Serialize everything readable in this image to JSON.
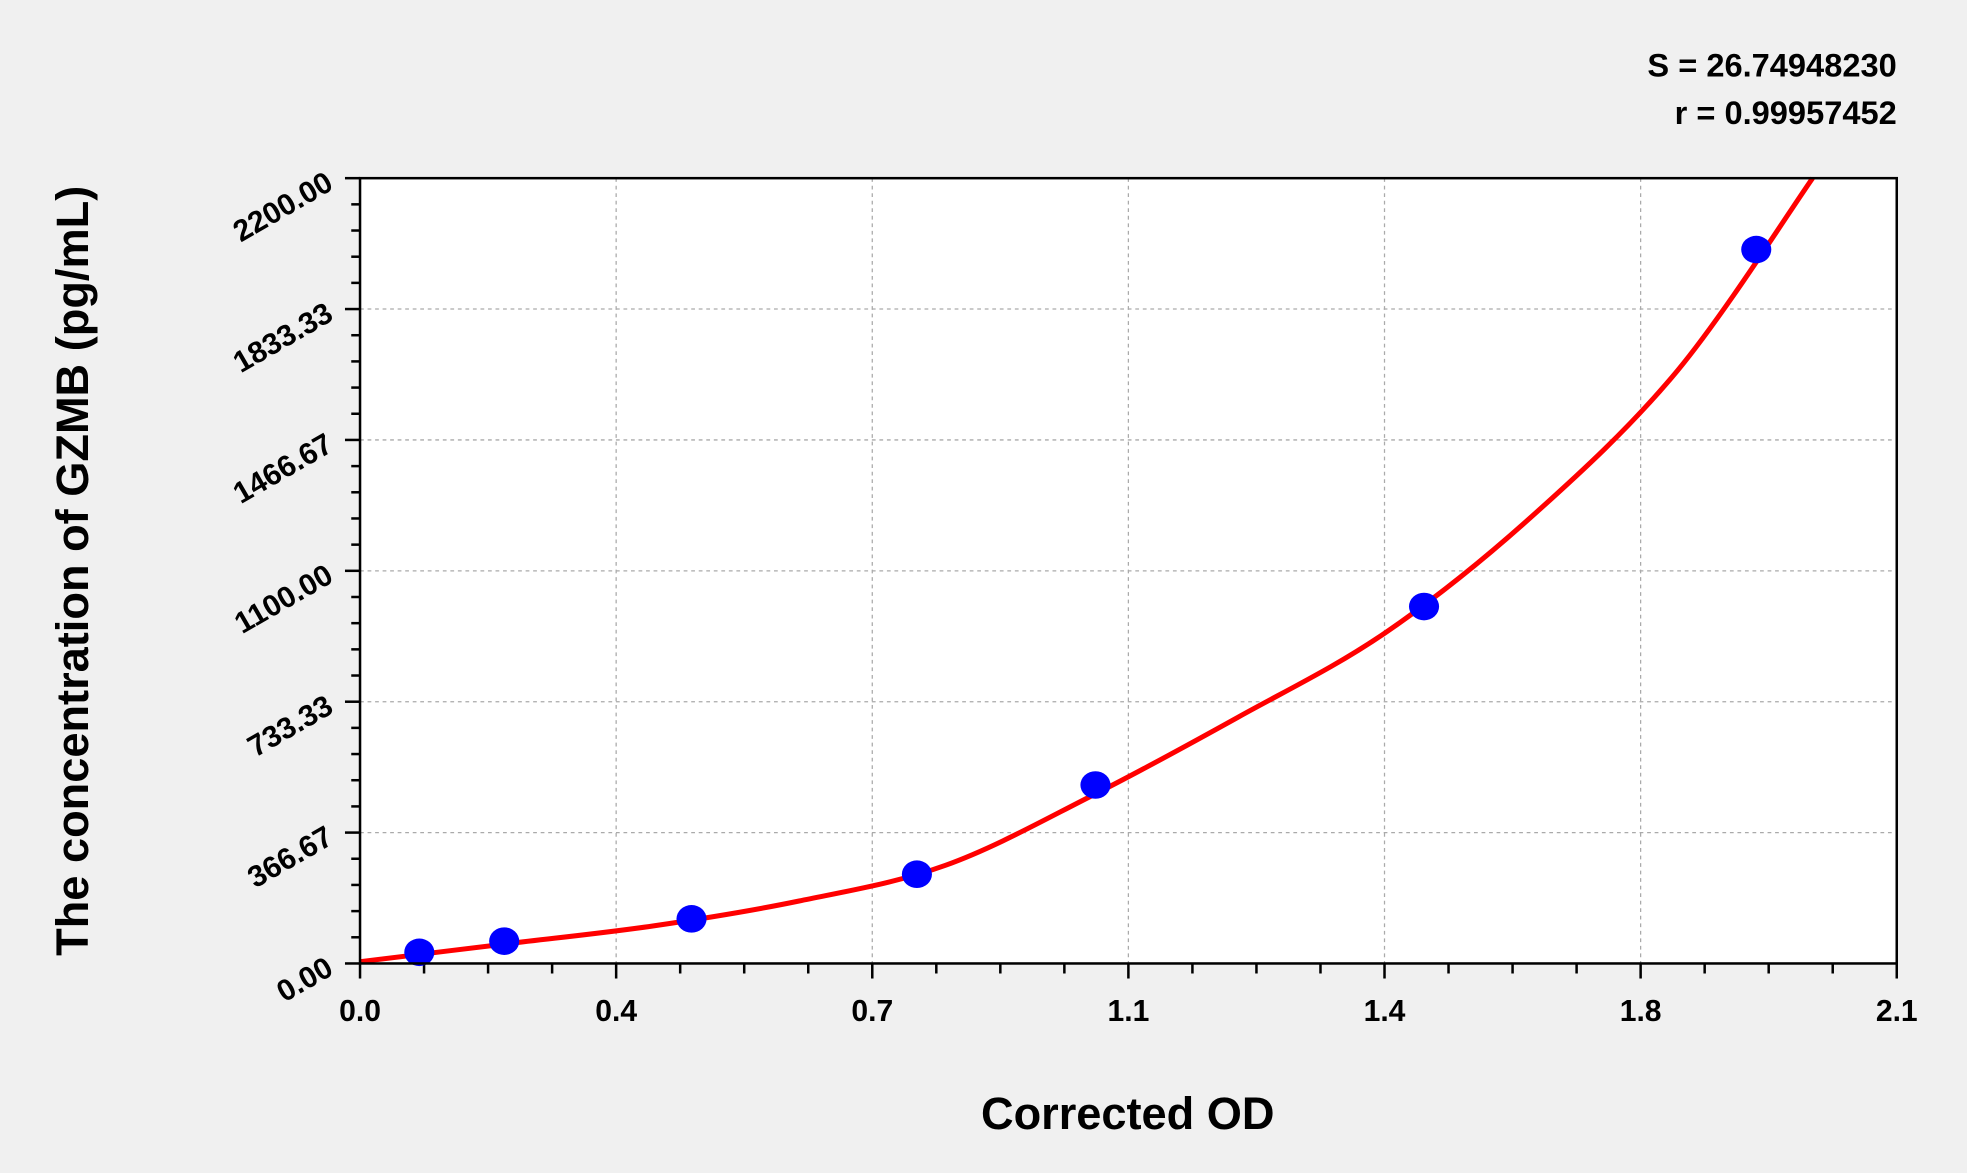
{
  "chart_data": {
    "type": "scatter",
    "xlabel": "Corrected OD",
    "ylabel": "The concentration of GZMB (pg/mL)",
    "xlim": [
      0,
      2.1
    ],
    "ylim": [
      0,
      2200
    ],
    "x_ticks": [
      "0.0",
      "0.4",
      "0.7",
      "1.1",
      "1.4",
      "1.8",
      "2.1"
    ],
    "y_ticks": [
      "0.00",
      "366.67",
      "733.33",
      "1100.00",
      "1466.67",
      "1833.33",
      "2200.00"
    ],
    "grid": true,
    "stats": {
      "s": "S = 26.74948230",
      "r": "r = 0.99957452"
    },
    "colors": {
      "points": "#0000ff",
      "fit": "#ff0000",
      "background": "#f0f0f0"
    },
    "points": [
      {
        "x": 0.081,
        "y": 31.25
      },
      {
        "x": 0.197,
        "y": 62.5
      },
      {
        "x": 0.453,
        "y": 125
      },
      {
        "x": 0.761,
        "y": 250
      },
      {
        "x": 1.005,
        "y": 500
      },
      {
        "x": 1.454,
        "y": 1000
      },
      {
        "x": 1.908,
        "y": 2000
      }
    ],
    "fit_curve": [
      {
        "x": 0,
        "y": 5
      },
      {
        "x": 0.2,
        "y": 55
      },
      {
        "x": 0.4,
        "y": 105
      },
      {
        "x": 0.6,
        "y": 175
      },
      {
        "x": 0.8,
        "y": 275
      },
      {
        "x": 1.0,
        "y": 470
      },
      {
        "x": 1.2,
        "y": 690
      },
      {
        "x": 1.4,
        "y": 925
      },
      {
        "x": 1.6,
        "y": 1250
      },
      {
        "x": 1.8,
        "y": 1660
      },
      {
        "x": 1.985,
        "y": 2200
      }
    ]
  }
}
